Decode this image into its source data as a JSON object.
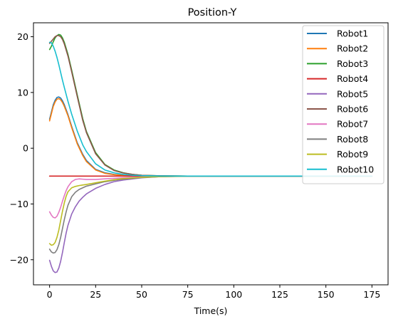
{
  "chart_data": {
    "type": "line",
    "title": "Position-Y",
    "xlabel": "Time(s)",
    "ylabel": "",
    "xlim": [
      -8.75,
      183.75
    ],
    "ylim": [
      -24.5,
      22.5
    ],
    "xticks": [
      0,
      25,
      50,
      75,
      100,
      125,
      150,
      175
    ],
    "yticks": [
      -20,
      -10,
      0,
      10,
      20
    ],
    "grid": false,
    "legend": "top-right",
    "series": [
      {
        "name": "Robot1",
        "color": "#1f77b4",
        "x": [
          0,
          1,
          2,
          3,
          4,
          5,
          6,
          7,
          8,
          10,
          12,
          15,
          18,
          20,
          25,
          30,
          35,
          40,
          50,
          60,
          75,
          100,
          125,
          150,
          175
        ],
        "y": [
          5.2,
          6.5,
          7.8,
          8.6,
          9.1,
          9.2,
          9.0,
          8.5,
          7.8,
          6.0,
          3.9,
          1.0,
          -1.1,
          -2.2,
          -3.8,
          -4.4,
          -4.7,
          -4.85,
          -4.95,
          -5.0,
          -5.0,
          -5.0,
          -5.0,
          -5.0,
          -5.0
        ]
      },
      {
        "name": "Robot2",
        "color": "#ff7f0e",
        "x": [
          0,
          1,
          2,
          3,
          4,
          5,
          6,
          7,
          8,
          10,
          12,
          15,
          18,
          20,
          25,
          30,
          35,
          40,
          50,
          60,
          75,
          100,
          125,
          150,
          175
        ],
        "y": [
          4.9,
          6.2,
          7.5,
          8.3,
          8.8,
          8.9,
          8.7,
          8.2,
          7.5,
          5.8,
          3.7,
          0.8,
          -1.3,
          -2.4,
          -3.9,
          -4.5,
          -4.75,
          -4.88,
          -4.96,
          -5.0,
          -5.0,
          -5.0,
          -5.0,
          -5.0,
          -5.0
        ]
      },
      {
        "name": "Robot3",
        "color": "#2ca02c",
        "x": [
          0,
          1,
          2,
          3,
          4,
          5,
          6,
          7,
          8,
          10,
          12,
          15,
          18,
          20,
          25,
          30,
          35,
          40,
          45,
          50,
          60,
          75,
          100,
          125,
          150,
          175
        ],
        "y": [
          17.7,
          18.3,
          19.1,
          19.8,
          20.2,
          20.4,
          20.3,
          19.8,
          19.0,
          16.8,
          14.0,
          9.6,
          5.3,
          3.0,
          -0.8,
          -2.9,
          -3.9,
          -4.4,
          -4.7,
          -4.85,
          -4.95,
          -5.0,
          -5.0,
          -5.0,
          -5.0,
          -5.0
        ]
      },
      {
        "name": "Robot4",
        "color": "#d62728",
        "x": [
          0,
          175
        ],
        "y": [
          -5.0,
          -5.0
        ]
      },
      {
        "name": "Robot5",
        "color": "#9467bd",
        "x": [
          0,
          1,
          2,
          3,
          4,
          5,
          6,
          7,
          8,
          9,
          10,
          12,
          14,
          16,
          18,
          20,
          25,
          30,
          35,
          40,
          50,
          60,
          75,
          100,
          125,
          150,
          175
        ],
        "y": [
          -20.1,
          -21.2,
          -22.0,
          -22.3,
          -22.2,
          -21.5,
          -20.3,
          -18.7,
          -16.9,
          -15.2,
          -13.8,
          -11.8,
          -10.5,
          -9.5,
          -8.8,
          -8.2,
          -7.2,
          -6.5,
          -6.0,
          -5.7,
          -5.3,
          -5.1,
          -5.03,
          -5.0,
          -5.0,
          -5.0,
          -5.0
        ]
      },
      {
        "name": "Robot6",
        "color": "#8c564b",
        "x": [
          0,
          1,
          2,
          3,
          4,
          5,
          6,
          7,
          8,
          10,
          12,
          15,
          18,
          20,
          25,
          30,
          35,
          40,
          45,
          50,
          60,
          75,
          100,
          125,
          150,
          175
        ],
        "y": [
          18.8,
          19.2,
          19.6,
          20.0,
          20.2,
          20.2,
          20.0,
          19.5,
          18.7,
          16.5,
          13.7,
          9.3,
          5.0,
          2.8,
          -1.0,
          -3.0,
          -4.0,
          -4.45,
          -4.7,
          -4.85,
          -4.95,
          -5.0,
          -5.0,
          -5.0,
          -5.0,
          -5.0
        ]
      },
      {
        "name": "Robot7",
        "color": "#e377c2",
        "x": [
          0,
          1,
          2,
          3,
          4,
          5,
          6,
          7,
          8,
          9,
          10,
          12,
          14,
          16,
          18,
          20,
          25,
          30,
          35,
          40,
          50,
          60,
          75,
          100,
          125,
          150,
          175
        ],
        "y": [
          -11.4,
          -12.0,
          -12.4,
          -12.5,
          -12.2,
          -11.5,
          -10.6,
          -9.5,
          -8.5,
          -7.6,
          -6.9,
          -6.0,
          -5.6,
          -5.5,
          -5.55,
          -5.6,
          -5.6,
          -5.5,
          -5.4,
          -5.3,
          -5.15,
          -5.05,
          -5.01,
          -5.0,
          -5.0,
          -5.0,
          -5.0
        ]
      },
      {
        "name": "Robot8",
        "color": "#7f7f7f",
        "x": [
          0,
          1,
          2,
          3,
          4,
          5,
          6,
          7,
          8,
          9,
          10,
          12,
          14,
          16,
          18,
          20,
          25,
          30,
          35,
          40,
          50,
          60,
          75,
          100,
          125,
          150,
          175
        ],
        "y": [
          -18.1,
          -18.6,
          -18.8,
          -18.7,
          -18.2,
          -17.3,
          -16.0,
          -14.4,
          -12.8,
          -11.4,
          -10.2,
          -8.7,
          -7.9,
          -7.4,
          -7.1,
          -6.8,
          -6.4,
          -6.0,
          -5.75,
          -5.55,
          -5.25,
          -5.1,
          -5.02,
          -5.0,
          -5.0,
          -5.0,
          -5.0
        ]
      },
      {
        "name": "Robot9",
        "color": "#bcbd22",
        "x": [
          0,
          1,
          2,
          3,
          4,
          5,
          6,
          7,
          8,
          9,
          10,
          12,
          14,
          16,
          18,
          20,
          25,
          30,
          35,
          40,
          50,
          60,
          75,
          100,
          125,
          150,
          175
        ],
        "y": [
          -17.1,
          -17.4,
          -17.3,
          -16.9,
          -16.0,
          -14.7,
          -13.0,
          -11.3,
          -9.8,
          -8.6,
          -7.8,
          -7.1,
          -6.85,
          -6.7,
          -6.6,
          -6.5,
          -6.2,
          -5.9,
          -5.65,
          -5.45,
          -5.2,
          -5.08,
          -5.01,
          -5.0,
          -5.0,
          -5.0,
          -5.0
        ]
      },
      {
        "name": "Robot10",
        "color": "#17becf",
        "x": [
          0,
          1,
          2,
          3,
          4,
          5,
          6,
          7,
          8,
          10,
          12,
          15,
          18,
          20,
          25,
          30,
          35,
          40,
          45,
          50,
          60,
          75,
          100,
          125,
          150,
          175
        ],
        "y": [
          19.0,
          18.9,
          18.3,
          17.4,
          16.3,
          15.0,
          13.6,
          12.2,
          10.9,
          8.4,
          6.1,
          3.1,
          0.6,
          -0.6,
          -2.8,
          -3.9,
          -4.4,
          -4.7,
          -4.85,
          -4.92,
          -4.98,
          -5.0,
          -5.0,
          -5.0,
          -5.0,
          -5.0
        ]
      }
    ]
  }
}
